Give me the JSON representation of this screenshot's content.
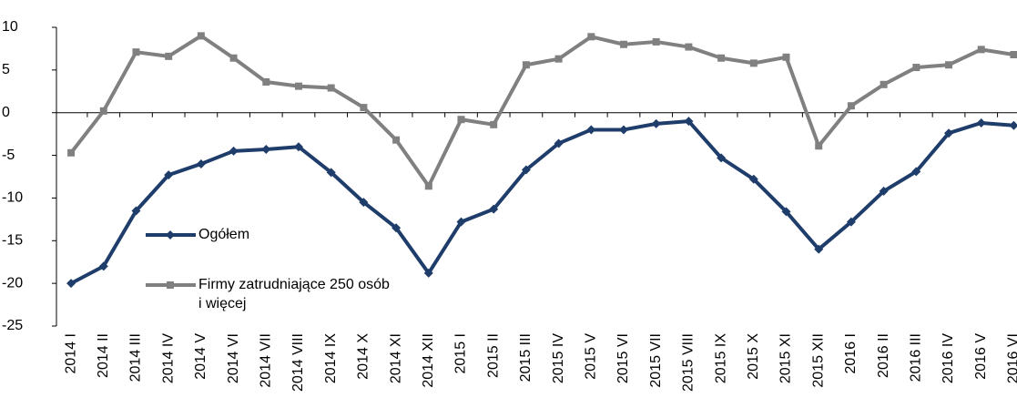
{
  "chart_data": {
    "type": "line",
    "categories": [
      "2014 I",
      "2014 II",
      "2014 III",
      "2014 IV",
      "2014 V",
      "2014 VI",
      "2014 VII",
      "2014 VIII",
      "2014 IX",
      "2014 X",
      "2014 XI",
      "2014 XII",
      "2015 I",
      "2015 II",
      "2015 III",
      "2015 IV",
      "2015 V",
      "2015 VI",
      "2015 VII",
      "2015 VIII",
      "2015 IX",
      "2015 X",
      "2015 XI",
      "2015 XII",
      "2016 I",
      "2016 II",
      "2016 III",
      "2016 IV",
      "2016 V",
      "2016 VI"
    ],
    "series": [
      {
        "name": "Ogółem",
        "color": "#1f3d6b",
        "marker": "diamond",
        "values": [
          -20,
          -18,
          -11.5,
          -7.3,
          -6,
          -4.5,
          -4.3,
          -4,
          -7,
          -10.5,
          -13.5,
          -18.8,
          -12.8,
          -11.3,
          -6.7,
          -3.6,
          -2,
          -2,
          -1.3,
          -1,
          -5.3,
          -7.8,
          -11.6,
          -16,
          -12.8,
          -9.2,
          -6.9,
          -2.4,
          -1.2,
          -1.5
        ]
      },
      {
        "name": "Firmy zatrudniające 250 osób i więcej",
        "color": "#808080",
        "marker": "square",
        "values": [
          -4.7,
          0.2,
          7.1,
          6.6,
          9,
          6.4,
          3.6,
          3.1,
          2.9,
          0.6,
          -3.2,
          -8.6,
          -0.8,
          -1.4,
          5.6,
          6.3,
          8.9,
          8,
          8.3,
          7.7,
          6.4,
          5.8,
          6.5,
          -3.9,
          0.8,
          3.3,
          5.3,
          5.6,
          7.4,
          6.8
        ]
      }
    ],
    "ylim": [
      -25,
      10
    ],
    "yticks": [
      -25,
      -20,
      -15,
      -10,
      -5,
      0,
      5,
      10
    ],
    "grid": false
  }
}
